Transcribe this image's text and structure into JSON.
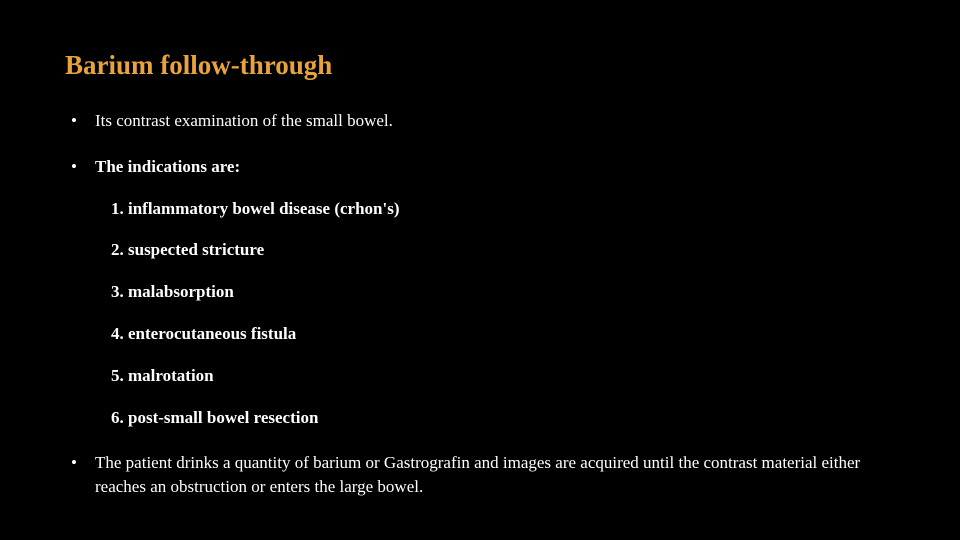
{
  "slide": {
    "title": "Barium follow-through",
    "title_color": "#e8a33d",
    "background_color": "#000000",
    "text_color": "#ffffff",
    "title_fontsize": 27,
    "body_fontsize": 17,
    "font_family": "Georgia, Times New Roman, serif",
    "bullets": [
      {
        "text": "Its contrast examination of the small bowel.",
        "bold": false
      },
      {
        "text": "The indications are:",
        "bold": true,
        "sublist": [
          "1. inflammatory bowel disease (crhon's)",
          "2. suspected stricture",
          "3. malabsorption",
          "4. enterocutaneous fistula",
          "5. malrotation",
          "6. post-small bowel resection"
        ]
      },
      {
        "text": "The patient drinks a quantity of barium or Gastrografin and images are acquired until the contrast material either reaches an obstruction or enters the large bowel.",
        "bold": false
      }
    ]
  }
}
